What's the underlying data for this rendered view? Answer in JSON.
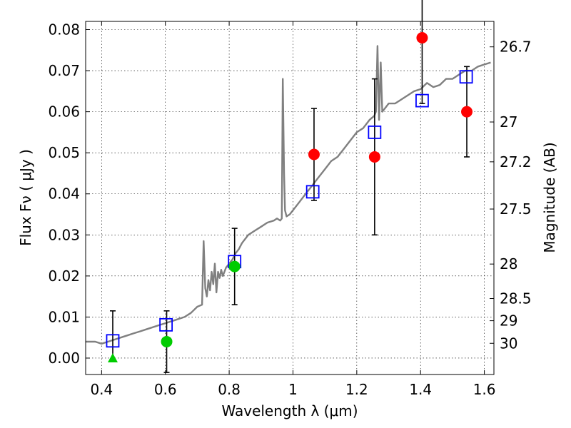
{
  "chart_data": {
    "type": "scatter",
    "title": "",
    "xlabel": "Wavelength  λ (μm)",
    "ylabel": "Flux  Fν  ( μJy )",
    "y2label": "Magnitude (AB)",
    "xlim": [
      0.35,
      1.63
    ],
    "ylim": [
      -0.004,
      0.082
    ],
    "grid": true,
    "x_ticks": [
      0.4,
      0.6,
      0.8,
      1.0,
      1.2,
      1.4,
      1.6
    ],
    "x_tick_labels": [
      "0.4",
      "0.6",
      "0.8",
      "1",
      "1.2",
      "1.4",
      "1.6"
    ],
    "y_ticks": [
      0.0,
      0.01,
      0.02,
      0.03,
      0.04,
      0.05,
      0.06,
      0.07,
      0.08
    ],
    "y_tick_labels": [
      "0.00",
      "0.01",
      "0.02",
      "0.03",
      "0.04",
      "0.05",
      "0.06",
      "0.07",
      "0.08"
    ],
    "y2_ticks": [
      {
        "label": "26.7",
        "flux": 0.0758
      },
      {
        "label": "27",
        "flux": 0.0575
      },
      {
        "label": "27.2",
        "flux": 0.0478
      },
      {
        "label": "27.5",
        "flux": 0.0363
      },
      {
        "label": "28",
        "flux": 0.0229
      },
      {
        "label": "28.5",
        "flux": 0.0145
      },
      {
        "label": "29",
        "flux": 0.0091
      },
      {
        "label": "30",
        "flux": 0.0036
      }
    ],
    "series": [
      {
        "kind": "line",
        "color": "#808080",
        "x": [
          0.35,
          0.38,
          0.4,
          0.42,
          0.44,
          0.46,
          0.48,
          0.5,
          0.52,
          0.54,
          0.56,
          0.58,
          0.6,
          0.62,
          0.64,
          0.66,
          0.68,
          0.7,
          0.715,
          0.72,
          0.725,
          0.73,
          0.735,
          0.74,
          0.745,
          0.75,
          0.755,
          0.76,
          0.765,
          0.77,
          0.775,
          0.78,
          0.79,
          0.8,
          0.81,
          0.82,
          0.83,
          0.84,
          0.85,
          0.86,
          0.88,
          0.9,
          0.92,
          0.94,
          0.95,
          0.96,
          0.965,
          0.968,
          0.972,
          0.975,
          0.98,
          0.99,
          1.0,
          1.02,
          1.04,
          1.06,
          1.08,
          1.1,
          1.12,
          1.14,
          1.16,
          1.18,
          1.2,
          1.22,
          1.24,
          1.255,
          1.26,
          1.265,
          1.27,
          1.275,
          1.28,
          1.29,
          1.3,
          1.32,
          1.34,
          1.36,
          1.38,
          1.4,
          1.42,
          1.44,
          1.46,
          1.48,
          1.5,
          1.52,
          1.54,
          1.56,
          1.58,
          1.6,
          1.62
        ],
        "y": [
          0.004,
          0.004,
          0.0035,
          0.004,
          0.0045,
          0.005,
          0.0055,
          0.006,
          0.0065,
          0.007,
          0.0075,
          0.008,
          0.0085,
          0.009,
          0.0095,
          0.01,
          0.011,
          0.0125,
          0.013,
          0.0285,
          0.017,
          0.015,
          0.019,
          0.0165,
          0.021,
          0.018,
          0.023,
          0.016,
          0.021,
          0.0195,
          0.0215,
          0.02,
          0.022,
          0.023,
          0.024,
          0.0255,
          0.0265,
          0.028,
          0.029,
          0.03,
          0.031,
          0.032,
          0.033,
          0.0335,
          0.034,
          0.0335,
          0.034,
          0.068,
          0.045,
          0.036,
          0.0345,
          0.035,
          0.036,
          0.038,
          0.04,
          0.042,
          0.044,
          0.046,
          0.048,
          0.049,
          0.051,
          0.053,
          0.055,
          0.056,
          0.058,
          0.059,
          0.06,
          0.076,
          0.058,
          0.072,
          0.06,
          0.061,
          0.062,
          0.062,
          0.063,
          0.064,
          0.065,
          0.0655,
          0.067,
          0.066,
          0.0665,
          0.068,
          0.068,
          0.069,
          0.07,
          0.07,
          0.071,
          0.0715,
          0.072
        ]
      },
      {
        "kind": "open-square",
        "color": "#0000ff",
        "x": [
          0.435,
          0.602,
          0.817,
          1.062,
          1.256,
          1.405,
          1.543
        ],
        "y": [
          0.0042,
          0.0081,
          0.0235,
          0.0405,
          0.055,
          0.0627,
          0.0685
        ]
      },
      {
        "kind": "filled-circle",
        "color": "#ff0000",
        "x": [
          1.066,
          1.256,
          1.405,
          1.545
        ],
        "y": [
          0.0496,
          0.049,
          0.078,
          0.06
        ],
        "yerr": [
          0.0112,
          0.019,
          0.016,
          0.011
        ]
      },
      {
        "kind": "filled-circle",
        "color": "#00cc00",
        "x": [
          0.604,
          0.817
        ],
        "y": [
          0.004,
          0.0223
        ],
        "yerr": [
          0.0075,
          0.0093
        ]
      },
      {
        "kind": "triangle",
        "color": "#00cc00",
        "x": [
          0.435
        ],
        "y": [
          0.0
        ],
        "yerr_up": [
          0.0115
        ]
      }
    ]
  }
}
